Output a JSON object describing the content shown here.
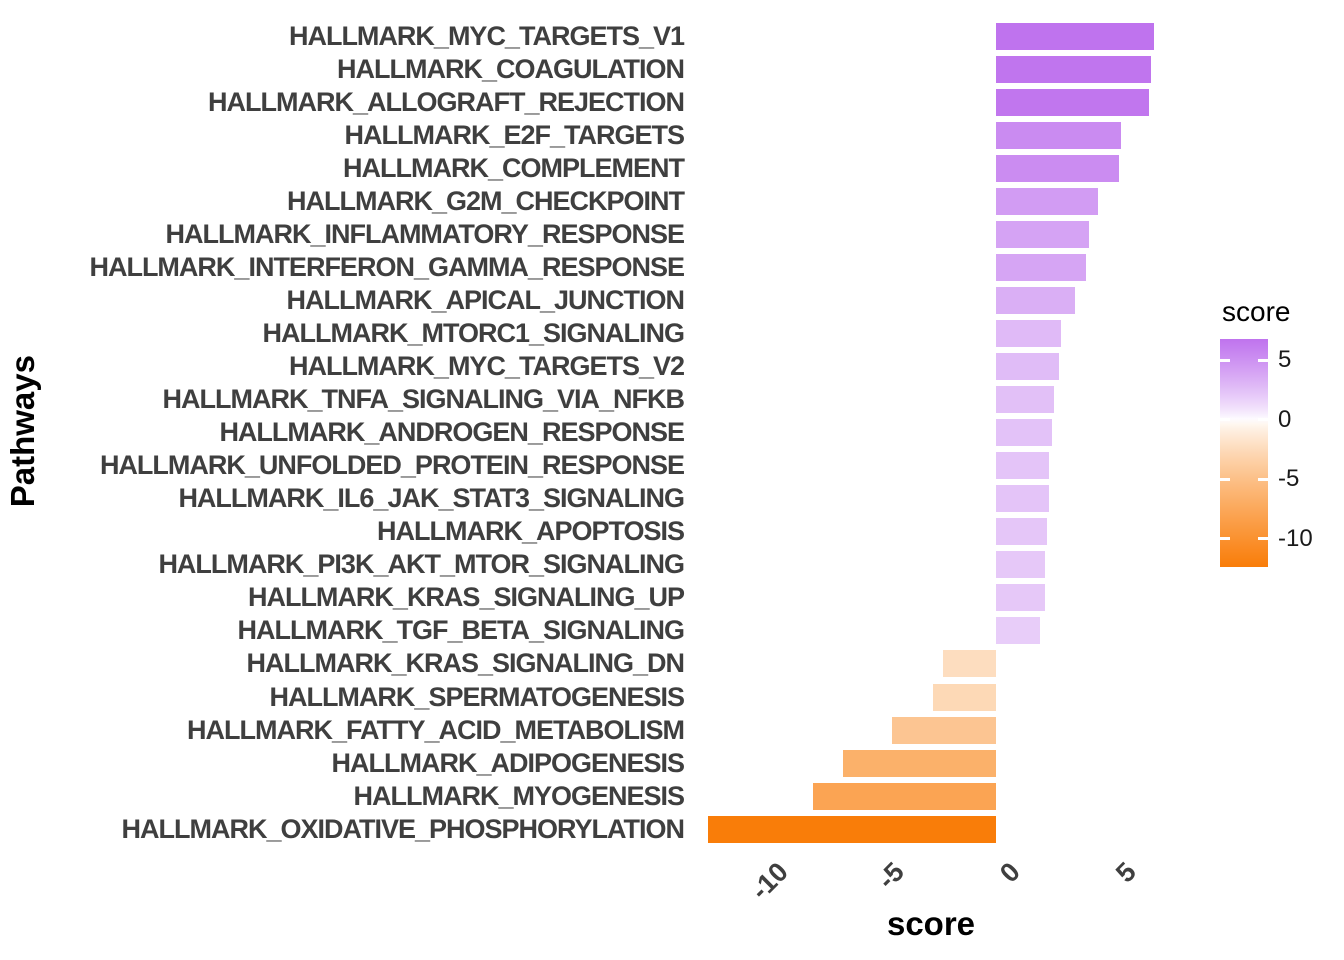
{
  "chart_data": {
    "type": "bar",
    "orientation": "horizontal",
    "title": "",
    "xlabel": "score",
    "ylabel": "Pathways",
    "x_ticks": [
      -10,
      -5,
      0,
      5
    ],
    "xlim": [
      -13.4,
      7.8
    ],
    "grid": false,
    "legend_position": "right",
    "categories": [
      "HALLMARK_MYC_TARGETS_V1",
      "HALLMARK_COAGULATION",
      "HALLMARK_ALLOGRAFT_REJECTION",
      "HALLMARK_E2F_TARGETS",
      "HALLMARK_COMPLEMENT",
      "HALLMARK_G2M_CHECKPOINT",
      "HALLMARK_INFLAMMATORY_RESPONSE",
      "HALLMARK_INTERFERON_GAMMA_RESPONSE",
      "HALLMARK_APICAL_JUNCTION",
      "HALLMARK_MTORC1_SIGNALING",
      "HALLMARK_MYC_TARGETS_V2",
      "HALLMARK_TNFA_SIGNALING_VIA_NFKB",
      "HALLMARK_ANDROGEN_RESPONSE",
      "HALLMARK_UNFOLDED_PROTEIN_RESPONSE",
      "HALLMARK_IL6_JAK_STAT3_SIGNALING",
      "HALLMARK_APOPTOSIS",
      "HALLMARK_PI3K_AKT_MTOR_SIGNALING",
      "HALLMARK_KRAS_SIGNALING_UP",
      "HALLMARK_TGF_BETA_SIGNALING",
      "HALLMARK_KRAS_SIGNALING_DN",
      "HALLMARK_SPERMATOGENESIS",
      "HALLMARK_FATTY_ACID_METABOLISM",
      "HALLMARK_ADIPOGENESIS",
      "HALLMARK_MYOGENESIS",
      "HALLMARK_OXIDATIVE_PHOSPHORYLATION"
    ],
    "values": [
      6.8,
      6.7,
      6.6,
      5.4,
      5.3,
      4.4,
      4.0,
      3.9,
      3.4,
      2.8,
      2.7,
      2.5,
      2.4,
      2.3,
      2.3,
      2.2,
      2.1,
      2.1,
      1.9,
      -2.3,
      -2.7,
      -4.5,
      -6.6,
      -7.9,
      -12.4
    ],
    "legend": {
      "title": "score",
      "ticks": [
        5,
        0,
        -5,
        -10
      ],
      "range_top": 6.8,
      "range_bottom": -12.4
    },
    "colors": {
      "high": "#bf73ee",
      "mid": "#ffffff",
      "low": "#f97d09",
      "axis_text": "#3f3f3f",
      "axis_title": "#000000"
    }
  }
}
